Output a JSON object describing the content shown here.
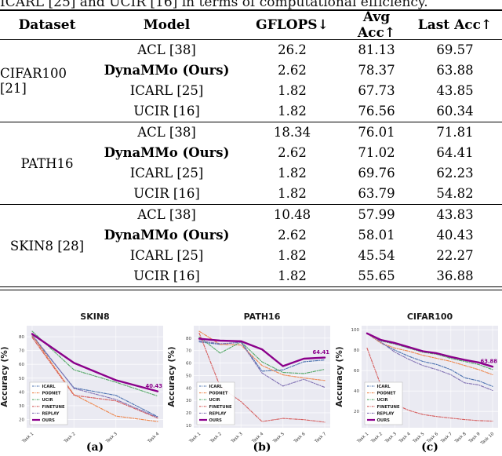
{
  "table": {
    "caption": "ICARL [25] and UCIR [16] in terms of computational efficiency.",
    "columns": [
      "Dataset",
      "Model",
      "GFLOPS↓",
      "Avg Acc↑",
      "Last Acc↑"
    ],
    "groups": [
      {
        "dataset": "CIFAR100 [21]",
        "rows": [
          {
            "model": "ACL [38]",
            "bold": false,
            "gflops": "26.2",
            "avg_acc": "81.13",
            "last_acc": "69.57"
          },
          {
            "model": "DynaMMo (Ours)",
            "bold": true,
            "gflops": "2.62",
            "avg_acc": "78.37",
            "last_acc": "63.88"
          },
          {
            "model": "ICARL [25]",
            "bold": false,
            "gflops": "1.82",
            "avg_acc": "67.73",
            "last_acc": "43.85"
          },
          {
            "model": "UCIR [16]",
            "bold": false,
            "gflops": "1.82",
            "avg_acc": "76.56",
            "last_acc": "60.34"
          }
        ]
      },
      {
        "dataset": "PATH16",
        "rows": [
          {
            "model": "ACL [38]",
            "bold": false,
            "gflops": "18.34",
            "avg_acc": "76.01",
            "last_acc": "71.81"
          },
          {
            "model": "DynaMMo (Ours)",
            "bold": true,
            "gflops": "2.62",
            "avg_acc": "71.02",
            "last_acc": "64.41"
          },
          {
            "model": "ICARL [25]",
            "bold": false,
            "gflops": "1.82",
            "avg_acc": "69.76",
            "last_acc": "62.23"
          },
          {
            "model": "UCIR [16]",
            "bold": false,
            "gflops": "1.82",
            "avg_acc": "63.79",
            "last_acc": "54.82"
          }
        ]
      },
      {
        "dataset": "SKIN8 [28]",
        "rows": [
          {
            "model": "ACL [38]",
            "bold": false,
            "gflops": "10.48",
            "avg_acc": "57.99",
            "last_acc": "43.83"
          },
          {
            "model": "DynaMMo (Ours)",
            "bold": true,
            "gflops": "2.62",
            "avg_acc": "58.01",
            "last_acc": "40.43"
          },
          {
            "model": "ICARL [25]",
            "bold": false,
            "gflops": "1.82",
            "avg_acc": "45.54",
            "last_acc": "22.27"
          },
          {
            "model": "UCIR [16]",
            "bold": false,
            "gflops": "1.82",
            "avg_acc": "55.65",
            "last_acc": "36.88"
          }
        ]
      }
    ]
  },
  "figure_style": {
    "plot_bg": "#eaeaf2",
    "grid_color": "#ffffff",
    "annotation_color": "#8b008b"
  },
  "chart_data": [
    {
      "type": "line",
      "title": "SKIN8",
      "caption": "(a)",
      "ylabel": "Accuracy (%)",
      "x_labels": [
        "Task 1",
        "Task 2",
        "Task 3",
        "Task 4"
      ],
      "yticks": [
        20,
        30,
        40,
        50,
        60,
        70,
        80
      ],
      "ylim": [
        14,
        88
      ],
      "grid": true,
      "legend_position": "lower-left",
      "annotation": {
        "text": "40.43",
        "value": 40.43,
        "color": "#8b008b"
      },
      "series": [
        {
          "name": "ICARL",
          "color": "#4c72b0",
          "style": "dashed",
          "values": [
            80.5,
            43,
            37.5,
            22
          ]
        },
        {
          "name": "PODNET",
          "color": "#ee854a",
          "style": "dashed",
          "values": [
            81,
            38,
            22.5,
            18.5
          ]
        },
        {
          "name": "UCIR",
          "color": "#55a868",
          "style": "dashed",
          "values": [
            84,
            56,
            47,
            37
          ]
        },
        {
          "name": "FINETUNE",
          "color": "#d65f5f",
          "style": "dashed",
          "values": [
            79.5,
            37.5,
            33.5,
            21
          ]
        },
        {
          "name": "REPLAY",
          "color": "#8172b3",
          "style": "dashed",
          "values": [
            81.5,
            42.5,
            34.5,
            21.5
          ]
        },
        {
          "name": "OURS",
          "color": "#8b008b",
          "style": "solid",
          "values": [
            82,
            61,
            48.5,
            40.43
          ]
        }
      ]
    },
    {
      "type": "line",
      "title": "PATH16",
      "caption": "(b)",
      "ylabel": "Accuracy (%)",
      "x_labels": [
        "Task 1",
        "Task 2",
        "Task 3",
        "Task 4",
        "Task 5",
        "Task 6",
        "Task 7"
      ],
      "yticks": [
        10,
        20,
        30,
        40,
        50,
        60,
        70,
        80
      ],
      "ylim": [
        8,
        90
      ],
      "grid": true,
      "legend_position": "lower-left",
      "annotation": {
        "text": "64.41",
        "value": 64.41,
        "color": "#8b008b"
      },
      "series": [
        {
          "name": "ICARL",
          "color": "#4c72b0",
          "style": "dashed",
          "values": [
            77,
            75,
            77,
            53.5,
            54.5,
            61,
            62.5
          ]
        },
        {
          "name": "PODNET",
          "color": "#ee854a",
          "style": "dashed",
          "values": [
            85.5,
            75,
            74.5,
            58,
            50.5,
            48,
            46
          ]
        },
        {
          "name": "UCIR",
          "color": "#55a868",
          "style": "dashed",
          "values": [
            81,
            68,
            77,
            61,
            52.5,
            51.5,
            55
          ]
        },
        {
          "name": "FINETUNE",
          "color": "#d65f5f",
          "style": "dashed",
          "values": [
            84,
            41,
            29,
            13,
            15.5,
            14.5,
            12.5
          ]
        },
        {
          "name": "REPLAY",
          "color": "#8172b3",
          "style": "dashed",
          "values": [
            78,
            75.5,
            76.5,
            52,
            41.5,
            47,
            40.5
          ]
        },
        {
          "name": "OURS",
          "color": "#8b008b",
          "style": "solid",
          "values": [
            79.5,
            78,
            77.5,
            71,
            57.5,
            63.5,
            64.41
          ]
        }
      ]
    },
    {
      "type": "line",
      "title": "CIFAR100",
      "caption": "(c)",
      "ylabel": "Accuracy (%)",
      "x_labels": [
        "Task 1",
        "Task 2",
        "Task 3",
        "Task 4",
        "Task 5",
        "Task 6",
        "Task 7",
        "Task 8",
        "Task 9",
        "Task 10"
      ],
      "yticks": [
        20,
        40,
        60,
        80,
        100
      ],
      "ylim": [
        4,
        104
      ],
      "grid": true,
      "legend_position": "lower-left",
      "annotation": {
        "text": "63.88",
        "value": 63.88,
        "color": "#8b008b"
      },
      "series": [
        {
          "name": "ICARL",
          "color": "#4c72b0",
          "style": "dashed",
          "values": [
            96.5,
            87,
            80,
            74,
            69,
            66,
            61,
            53,
            50,
            44.5
          ]
        },
        {
          "name": "PODNET",
          "color": "#ee854a",
          "style": "dashed",
          "values": [
            96.5,
            87,
            82,
            79,
            75,
            72,
            69,
            65,
            61,
            56
          ]
        },
        {
          "name": "UCIR",
          "color": "#55a868",
          "style": "dashed",
          "values": [
            96.5,
            89,
            86,
            82,
            78,
            76,
            72,
            69,
            66,
            61
          ]
        },
        {
          "name": "FINETUNE",
          "color": "#d65f5f",
          "style": "dashed",
          "values": [
            82,
            45,
            27,
            21,
            17,
            15,
            13.5,
            12,
            11,
            10.5
          ]
        },
        {
          "name": "REPLAY",
          "color": "#8172b3",
          "style": "dashed",
          "values": [
            96.5,
            88,
            78,
            71,
            65,
            61,
            56,
            48,
            46,
            40.5
          ]
        },
        {
          "name": "OURS",
          "color": "#8b008b",
          "style": "solid",
          "values": [
            96.5,
            90,
            87,
            83,
            79,
            77,
            73.5,
            70.5,
            68,
            63.88
          ]
        }
      ]
    }
  ]
}
